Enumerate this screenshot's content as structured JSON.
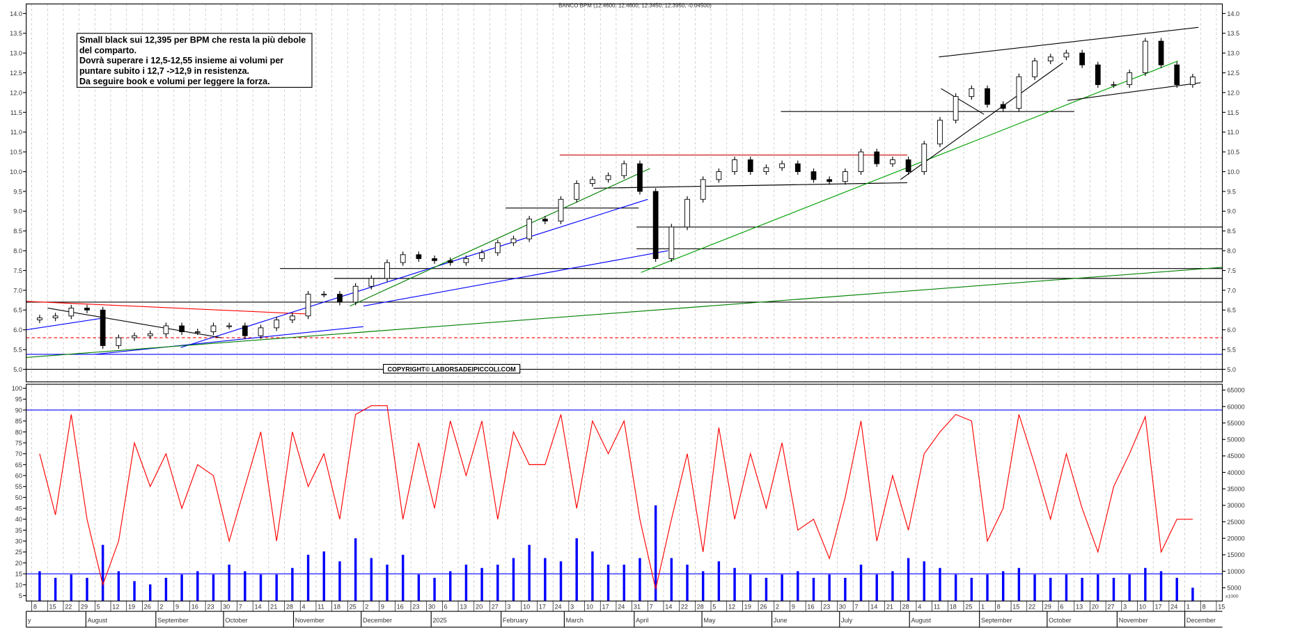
{
  "chart_data": {
    "type": "candlestick",
    "title": "BANCO BPM (12.4600, 12.4600, 12.3450, 12.3950, -0.04500)",
    "annotation_lines": [
      "Small black sui 12,395 per BPM che resta la più debole",
      "del comparto.",
      "Dovrà superare i 12,5-12,55 insieme ai volumi per",
      "puntare subito i 12,7  ->12,9 in resistenza.",
      "Da seguire book e volumi per leggere la forza."
    ],
    "copyright": "COPYRIGHT© LABORSADEIPICCOLI.COM",
    "first_week": "2024-07-08",
    "price_axis": {
      "min": 5.0,
      "max": 14.0,
      "step": 0.5
    },
    "weekly_close": [
      6.3,
      6.35,
      6.55,
      6.5,
      5.6,
      5.8,
      5.85,
      5.9,
      6.1,
      5.95,
      5.95,
      6.1,
      6.1,
      5.85,
      6.05,
      6.25,
      6.35,
      6.9,
      6.9,
      6.7,
      7.1,
      7.3,
      7.7,
      7.9,
      7.8,
      7.75,
      7.7,
      7.8,
      7.95,
      8.2,
      8.3,
      8.8,
      8.75,
      9.3,
      9.7,
      9.8,
      9.9,
      10.2,
      9.5,
      7.8,
      8.6,
      9.3,
      9.8,
      10.0,
      10.3,
      10.0,
      10.1,
      10.2,
      10.0,
      9.8,
      9.75,
      10.0,
      10.5,
      10.2,
      10.3,
      10.0,
      10.7,
      11.3,
      11.9,
      12.1,
      11.7,
      11.6,
      12.4,
      12.8,
      12.9,
      13.0,
      12.7,
      12.2,
      12.2,
      12.5,
      13.3,
      12.7,
      12.2,
      12.395
    ],
    "horizontal_levels": [
      {
        "price": 8.6,
        "from": "2025-04-02",
        "color": "#000000"
      },
      {
        "price": 8.05,
        "from": "2025-04-02",
        "color": "#000000"
      },
      {
        "price": 7.55,
        "from": "2024-10-26",
        "color": "#000000"
      },
      {
        "price": 7.3,
        "from": "2024-11-19",
        "color": "#000000"
      },
      {
        "price": 6.7,
        "from": "2024-07-05",
        "color": "#000000"
      },
      {
        "price": 5.8,
        "from": "2024-07-05",
        "color": "#ff0000",
        "dashed": true
      },
      {
        "price": 5.38,
        "from": "2024-07-05",
        "color": "#0000ff"
      },
      {
        "price": 5.0,
        "from": "2024-07-05",
        "color": "#000000"
      }
    ],
    "trendlines": [
      {
        "from": [
          "2024-07-05",
          6.72
        ],
        "to": [
          "2024-11-07",
          6.4
        ],
        "color": "#ff0000"
      },
      {
        "from": [
          "2025-02-27",
          10.42
        ],
        "to": [
          "2025-07-31",
          10.42
        ],
        "color": "#cc0000"
      },
      {
        "from": [
          "2025-06-05",
          11.52
        ],
        "to": [
          "2025-10-13",
          11.52
        ],
        "color": "#000000"
      },
      {
        "from": [
          "2025-03-14",
          9.58
        ],
        "to": [
          "2025-07-31",
          9.72
        ],
        "color": "#000000"
      },
      {
        "from": [
          "2025-02-03",
          9.08
        ],
        "to": [
          "2025-04-03",
          9.08
        ],
        "color": "#000000"
      },
      {
        "from": [
          "2024-07-05",
          6.0
        ],
        "to": [
          "2024-08-09",
          6.3
        ],
        "color": "#0000ff"
      },
      {
        "from": [
          "2024-08-05",
          5.38
        ],
        "to": [
          "2024-12-02",
          6.08
        ],
        "color": "#0000ff"
      },
      {
        "from": [
          "2024-09-12",
          5.55
        ],
        "to": [
          "2025-04-07",
          9.3
        ],
        "color": "#0000ff"
      },
      {
        "from": [
          "2024-12-02",
          6.6
        ],
        "to": [
          "2025-04-16",
          8.0
        ],
        "color": "#0000ff"
      },
      {
        "from": [
          "2024-07-05",
          5.3
        ],
        "to": [
          "2025-12-18",
          7.58
        ],
        "color": "#008000"
      },
      {
        "from": [
          "2024-11-26",
          6.6
        ],
        "to": [
          "2025-04-08",
          10.08
        ],
        "color": "#008000"
      },
      {
        "from": [
          "2025-04-04",
          7.45
        ],
        "to": [
          "2025-11-28",
          12.8
        ],
        "color": "#00a000"
      },
      {
        "from": [
          "2024-07-15",
          6.55
        ],
        "to": [
          "2024-09-30",
          5.8
        ],
        "color": "#000000"
      },
      {
        "from": [
          "2025-07-28",
          9.8
        ],
        "to": [
          "2025-10-08",
          12.75
        ],
        "color": "#000000"
      },
      {
        "from": [
          "2025-08-14",
          12.9
        ],
        "to": [
          "2025-12-07",
          13.65
        ],
        "color": "#000000"
      },
      {
        "from": [
          "2025-10-10",
          11.8
        ],
        "to": [
          "2025-12-08",
          12.25
        ],
        "color": "#000000"
      },
      {
        "from": [
          "2025-08-15",
          12.1
        ],
        "to": [
          "2025-09-03",
          11.45
        ],
        "color": "#000000"
      }
    ],
    "oscillator": {
      "axis": {
        "min": 5,
        "max": 100,
        "step": 5
      },
      "levels": [
        90,
        15
      ],
      "color": "#ff0000",
      "weekly_values": [
        70,
        42,
        88,
        40,
        10,
        30,
        75,
        55,
        70,
        45,
        65,
        60,
        30,
        55,
        80,
        30,
        80,
        55,
        70,
        40,
        88,
        92,
        92,
        40,
        75,
        45,
        85,
        60,
        85,
        40,
        80,
        65,
        65,
        88,
        45,
        85,
        70,
        85,
        40,
        8,
        40,
        70,
        25,
        82,
        40,
        70,
        45,
        75,
        35,
        40,
        22,
        50,
        85,
        30,
        60,
        35,
        70,
        80,
        88,
        85,
        30,
        45,
        88,
        65,
        40,
        70,
        45,
        25,
        55,
        70,
        87,
        25,
        40,
        40
      ]
    },
    "volume": {
      "axis": {
        "min": 5000,
        "max": 65000,
        "step": 5000
      },
      "unit_label": "x1000",
      "color": "#0000ff",
      "weekly_values": [
        10000,
        8000,
        9000,
        8000,
        18000,
        10000,
        7000,
        6000,
        8000,
        9000,
        10000,
        9000,
        12000,
        10000,
        9000,
        9000,
        11000,
        15000,
        16000,
        13000,
        20000,
        14000,
        12000,
        15000,
        9000,
        8000,
        10000,
        12000,
        11000,
        12000,
        14000,
        18000,
        14000,
        13000,
        20000,
        16000,
        12000,
        12000,
        14000,
        30000,
        14000,
        12000,
        10000,
        13000,
        11000,
        9000,
        8000,
        9000,
        10000,
        8000,
        9000,
        8000,
        12000,
        9000,
        10000,
        14000,
        13000,
        11000,
        9000,
        8000,
        9000,
        10000,
        11000,
        9000,
        8000,
        9000,
        8000,
        9000,
        8000,
        9000,
        11000,
        10000,
        8000,
        5000
      ]
    },
    "x_tick_labels": [
      "8",
      "15",
      "22",
      "29",
      "5",
      "12",
      "19",
      "26",
      "2",
      "9",
      "16",
      "23",
      "30",
      "7",
      "14",
      "21",
      "28",
      "4",
      "11",
      "18",
      "25",
      "2",
      "9",
      "16",
      "23",
      "30",
      "6",
      "13",
      "20",
      "27",
      "3",
      "10",
      "17",
      "24",
      "3",
      "10",
      "17",
      "24",
      "31",
      "7",
      "14",
      "22",
      "28",
      "5",
      "12",
      "19",
      "26",
      "2",
      "9",
      "16",
      "23",
      "30",
      "7",
      "14",
      "21",
      "28",
      "4",
      "11",
      "18",
      "25",
      "1",
      "8",
      "15",
      "22",
      "29",
      "6",
      "13",
      "20",
      "27",
      "3",
      "10",
      "17",
      "24",
      "1",
      "8",
      "15"
    ],
    "month_labels": [
      {
        "label": "y",
        "date": "2024-07-05"
      },
      {
        "label": "August",
        "date": "2024-08-01"
      },
      {
        "label": "September",
        "date": "2024-09-01"
      },
      {
        "label": "October",
        "date": "2024-10-01"
      },
      {
        "label": "November",
        "date": "2024-11-01"
      },
      {
        "label": "December",
        "date": "2024-12-01"
      },
      {
        "label": "2025",
        "date": "2025-01-01"
      },
      {
        "label": "February",
        "date": "2025-02-01"
      },
      {
        "label": "March",
        "date": "2025-03-01"
      },
      {
        "label": "April",
        "date": "2025-04-01"
      },
      {
        "label": "May",
        "date": "2025-05-01"
      },
      {
        "label": "June",
        "date": "2025-06-01"
      },
      {
        "label": "July",
        "date": "2025-07-01"
      },
      {
        "label": "August",
        "date": "2025-08-01"
      },
      {
        "label": "September",
        "date": "2025-09-01"
      },
      {
        "label": "October",
        "date": "2025-10-01"
      },
      {
        "label": "November",
        "date": "2025-11-01"
      },
      {
        "label": "December",
        "date": "2025-12-01"
      }
    ],
    "grid": true
  }
}
